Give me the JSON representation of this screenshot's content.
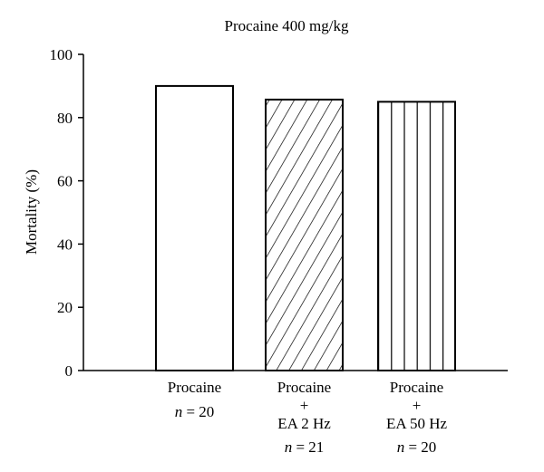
{
  "chart_data": {
    "type": "bar",
    "title": "Procaine 400 mg/kg",
    "ylabel": "Mortality (%)",
    "xlabel": "",
    "ylim": [
      0,
      100
    ],
    "yticks": [
      0,
      20,
      40,
      60,
      80,
      100
    ],
    "grid": false,
    "categories": [
      {
        "lines": [
          "Procaine"
        ],
        "n_prefix": "n",
        "n_value": "= 20",
        "pattern": "none"
      },
      {
        "lines": [
          "Procaine",
          "+",
          "EA 2 Hz"
        ],
        "n_prefix": "n",
        "n_value": "= 21",
        "pattern": "diagonal-hatch"
      },
      {
        "lines": [
          "Procaine",
          "+",
          "EA 50 Hz"
        ],
        "n_prefix": "n",
        "n_value": "= 20",
        "pattern": "vertical-lines"
      }
    ],
    "values": [
      90,
      85.7,
      85
    ]
  }
}
